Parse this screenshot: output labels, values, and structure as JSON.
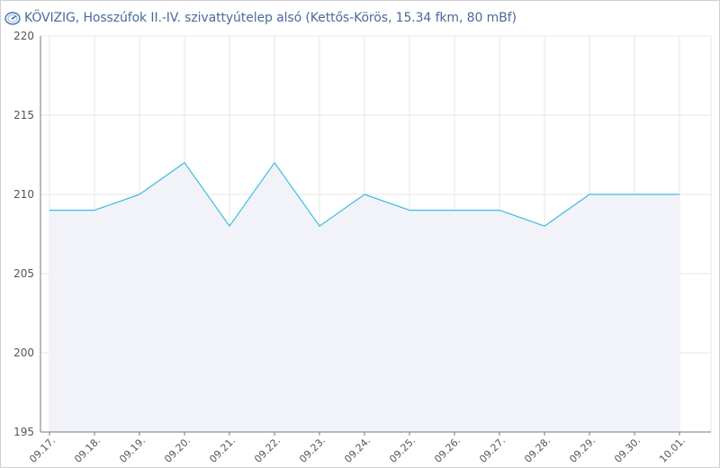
{
  "header": {
    "title": "KÖVIZIG, Hosszúfok II.-IV. szivattyútelep alsó (Kettős-Körös, 15.34 fkm, 80 mBf)",
    "icon": "gauge-icon"
  },
  "colors": {
    "line": "#3bbbe3",
    "area": "#f2f3f8",
    "grid": "#e7e7e7",
    "axis": "#7a7a7a",
    "title": "#4a6a9a"
  },
  "chart_data": {
    "type": "area",
    "title": "KÖVIZIG, Hosszúfok II.-IV. szivattyútelep alsó (Kettős-Körös, 15.34 fkm, 80 mBf)",
    "xlabel": "",
    "ylabel": "",
    "categories": [
      "09.17.",
      "09.18.",
      "09.19.",
      "09.20.",
      "09.21.",
      "09.22.",
      "09.23.",
      "09.24.",
      "09.25.",
      "09.26.",
      "09.27.",
      "09.28.",
      "09.29.",
      "09.30.",
      "10.01."
    ],
    "values": [
      209,
      209,
      210,
      212,
      208,
      212,
      208,
      210,
      209,
      209,
      209,
      208,
      210,
      210,
      210
    ],
    "yticks": [
      195,
      200,
      205,
      210,
      215,
      220
    ],
    "ylim": [
      195,
      220
    ],
    "grid": true,
    "legend": "none"
  }
}
